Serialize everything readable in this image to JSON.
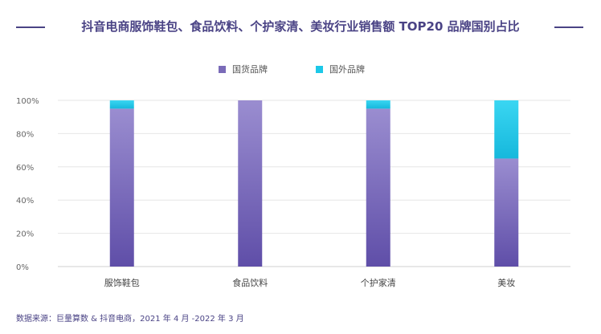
{
  "chart_data": {
    "type": "bar",
    "stacked": true,
    "title": "抖音电商服饰鞋包、食品饮料、个护家清、美妆行业销售额 TOP20 品牌国别占比",
    "categories": [
      "服饰鞋包",
      "食品饮料",
      "个护家清",
      "美妆"
    ],
    "series": [
      {
        "name": "国货品牌",
        "color": "#7a6bb8",
        "values": [
          95,
          100,
          95,
          65
        ]
      },
      {
        "name": "国外品牌",
        "color": "#1cc8e8",
        "values": [
          5,
          0,
          5,
          35
        ]
      }
    ],
    "ylim": [
      0,
      100
    ],
    "y_ticks": [
      "0%",
      "20%",
      "40%",
      "60%",
      "80%",
      "100%"
    ],
    "grid": true,
    "legend_position": "top"
  },
  "source": "数据来源：巨量算数 & 抖音电商，2021 年 4 月 -2022 年 3 月"
}
